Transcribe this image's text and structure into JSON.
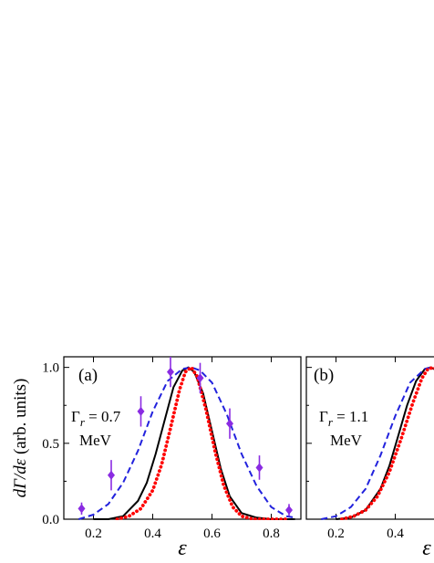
{
  "figure": {
    "ylabel": "dΓ/dε (arb. units)",
    "ylabel_parts": {
      "main": "dΓ/dε",
      "rest": " (arb. units)"
    }
  },
  "chart_data": [
    {
      "type": "line",
      "panel_label": "(a)",
      "annotation": {
        "symbol": "Γ",
        "subscript": "r",
        "value_text": " = 0.7",
        "unit": "MeV"
      },
      "xlabel": "ε",
      "ylabel": "dΓ/dε (arb. units)",
      "xlim": [
        0.1,
        0.9
      ],
      "ylim": [
        0.0,
        1.07
      ],
      "x_ticks": [
        0.2,
        0.4,
        0.6,
        0.8
      ],
      "x_tick_labels": [
        "0.2",
        "0.4",
        "0.6",
        "0.8"
      ],
      "y_ticks": [
        0.0,
        0.5,
        1.0
      ],
      "y_tick_labels": [
        "0.0",
        "0.5",
        "1.0"
      ],
      "grid": false,
      "series": [
        {
          "style": "solid",
          "color": "#000000",
          "x": [
            0.2,
            0.25,
            0.3,
            0.35,
            0.38,
            0.41,
            0.44,
            0.47,
            0.5,
            0.52,
            0.54,
            0.57,
            0.6,
            0.63,
            0.66,
            0.7,
            0.75,
            0.8,
            0.88
          ],
          "y": [
            0.0,
            0.0,
            0.02,
            0.12,
            0.24,
            0.43,
            0.65,
            0.87,
            0.98,
            1.0,
            0.97,
            0.83,
            0.58,
            0.33,
            0.15,
            0.04,
            0.01,
            0.0,
            0.0
          ]
        },
        {
          "style": "dashed",
          "color": "#2222dd",
          "x": [
            0.15,
            0.2,
            0.25,
            0.3,
            0.35,
            0.4,
            0.45,
            0.5,
            0.53,
            0.56,
            0.6,
            0.65,
            0.7,
            0.75,
            0.8,
            0.85,
            0.88
          ],
          "y": [
            0.0,
            0.03,
            0.1,
            0.24,
            0.45,
            0.71,
            0.91,
            0.99,
            1.0,
            0.98,
            0.9,
            0.69,
            0.43,
            0.22,
            0.08,
            0.02,
            0.01
          ]
        },
        {
          "style": "dotted",
          "color": "#ff0000",
          "x": [
            0.28,
            0.32,
            0.36,
            0.4,
            0.43,
            0.46,
            0.49,
            0.51,
            0.53,
            0.55,
            0.58,
            0.61,
            0.64,
            0.67,
            0.7,
            0.74,
            0.78,
            0.85
          ],
          "y": [
            0.0,
            0.02,
            0.07,
            0.19,
            0.36,
            0.6,
            0.85,
            0.97,
            1.0,
            0.94,
            0.72,
            0.45,
            0.22,
            0.08,
            0.02,
            0.0,
            0.0,
            0.0
          ]
        }
      ],
      "points": {
        "color": "#8a2be2",
        "x": [
          0.16,
          0.26,
          0.36,
          0.46,
          0.56,
          0.66,
          0.76,
          0.86
        ],
        "y": [
          0.07,
          0.29,
          0.71,
          0.97,
          0.93,
          0.63,
          0.34,
          0.06
        ],
        "err": [
          0.04,
          0.1,
          0.1,
          0.1,
          0.1,
          0.1,
          0.08,
          0.04
        ]
      }
    },
    {
      "type": "line",
      "panel_label": "(b)",
      "annotation": {
        "symbol": "Γ",
        "subscript": "r",
        "value_text": " = 1.1",
        "unit": "MeV"
      },
      "xlabel": "ε",
      "xlim": [
        0.1,
        0.9
      ],
      "ylim": [
        0.0,
        1.07
      ],
      "x_ticks": [
        0.2,
        0.4
      ],
      "x_tick_labels": [
        "0.2",
        "0.4"
      ],
      "grid": false,
      "series": [
        {
          "style": "solid",
          "color": "#000000",
          "x": [
            0.2,
            0.25,
            0.3,
            0.35,
            0.38,
            0.41,
            0.44,
            0.47,
            0.5,
            0.52,
            0.54,
            0.57,
            0.6
          ],
          "y": [
            0.0,
            0.01,
            0.06,
            0.2,
            0.35,
            0.55,
            0.75,
            0.91,
            0.99,
            1.0,
            0.98,
            0.88,
            0.7
          ]
        },
        {
          "style": "dashed",
          "color": "#2222dd",
          "x": [
            0.15,
            0.2,
            0.25,
            0.3,
            0.35,
            0.4,
            0.45,
            0.5,
            0.52,
            0.55,
            0.58,
            0.6
          ],
          "y": [
            0.0,
            0.02,
            0.08,
            0.2,
            0.42,
            0.68,
            0.9,
            0.99,
            1.0,
            0.99,
            0.95,
            0.9
          ]
        },
        {
          "style": "dotted",
          "color": "#ff0000",
          "x": [
            0.22,
            0.26,
            0.3,
            0.34,
            0.38,
            0.42,
            0.46,
            0.49,
            0.51,
            0.53,
            0.55,
            0.58,
            0.6
          ],
          "y": [
            0.0,
            0.02,
            0.06,
            0.15,
            0.31,
            0.53,
            0.77,
            0.93,
            0.99,
            1.0,
            0.97,
            0.87,
            0.75
          ]
        }
      ]
    }
  ]
}
